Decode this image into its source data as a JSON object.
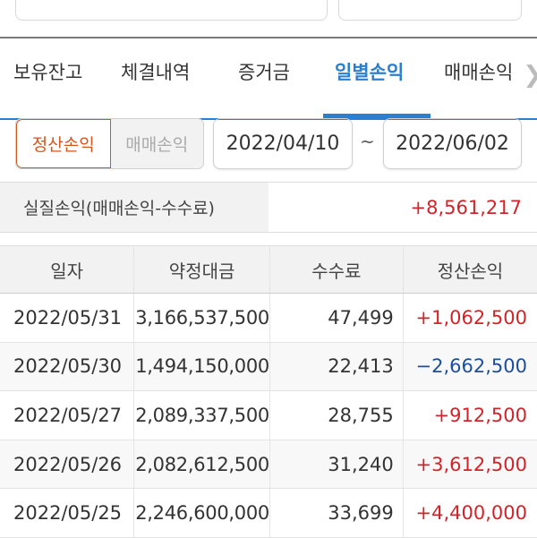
{
  "tabs": [
    {
      "label": "보유잔고"
    },
    {
      "label": "체결내역"
    },
    {
      "label": "증거금"
    },
    {
      "label": "일별손익",
      "active": true
    },
    {
      "label": "매매손익"
    }
  ],
  "toggle": {
    "selected": "정산손익",
    "other": "매매손익"
  },
  "date_range": {
    "start": "2022/04/10",
    "separator": "~",
    "end": "2022/06/02"
  },
  "summary": {
    "label": "실질손익(매매손익-수수료)",
    "value": "+8,561,217"
  },
  "table": {
    "headers": [
      "일자",
      "약정대금",
      "수수료",
      "정산손익"
    ],
    "rows": [
      [
        "2022/05/31",
        "3,166,537,500",
        "47,499",
        "+1,062,500"
      ],
      [
        "2022/05/30",
        "1,494,150,000",
        "22,413",
        "−2,662,500"
      ],
      [
        "2022/05/27",
        "2,089,337,500",
        "28,755",
        "+912,500"
      ],
      [
        "2022/05/26",
        "2,082,612,500",
        "31,240",
        "+3,612,500"
      ],
      [
        "2022/05/25",
        "2,246,600,000",
        "33,699",
        "+4,400,000"
      ]
    ]
  },
  "colors": {
    "accent": "#2b7fd1",
    "selected": "#d2561d",
    "positive": "#d2232a",
    "negative": "#1a4f9c"
  }
}
